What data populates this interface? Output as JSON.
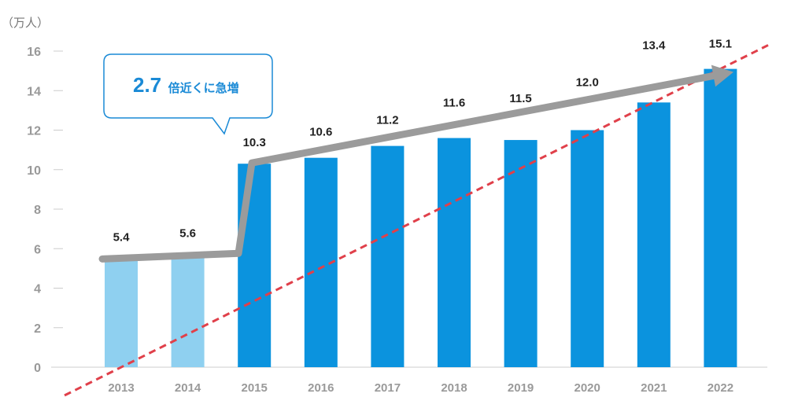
{
  "chart_data": {
    "type": "bar",
    "unit_label": "（万人）",
    "categories": [
      "2013",
      "2014",
      "2015",
      "2016",
      "2017",
      "2018",
      "2019",
      "2020",
      "2021",
      "2022"
    ],
    "values": [
      5.4,
      5.6,
      10.3,
      10.6,
      11.2,
      11.6,
      11.5,
      12.0,
      13.4,
      15.1
    ],
    "value_labels": [
      "5.4",
      "5.6",
      "10.3",
      "10.6",
      "11.2",
      "11.6",
      "11.5",
      "12.0",
      "13.4",
      "15.1"
    ],
    "ylim": [
      0,
      16
    ],
    "yticks": [
      0,
      2,
      4,
      6,
      8,
      10,
      12,
      14,
      16
    ],
    "grid": false,
    "colors": {
      "bar_light": "#8fd0f0",
      "bar_dark": "#0b93de",
      "trend_arrow": "#9b9b9b",
      "dashed_line": "#e0404a",
      "callout_border": "#1a8ad6",
      "axis": "#cccccc"
    },
    "light_bar_count": 2,
    "trend_dashed_line": {
      "from": [
        2013,
        0
      ],
      "to": [
        2022,
        15.1
      ]
    },
    "callout": {
      "big": "2.7",
      "small": "倍近くに急増"
    }
  }
}
